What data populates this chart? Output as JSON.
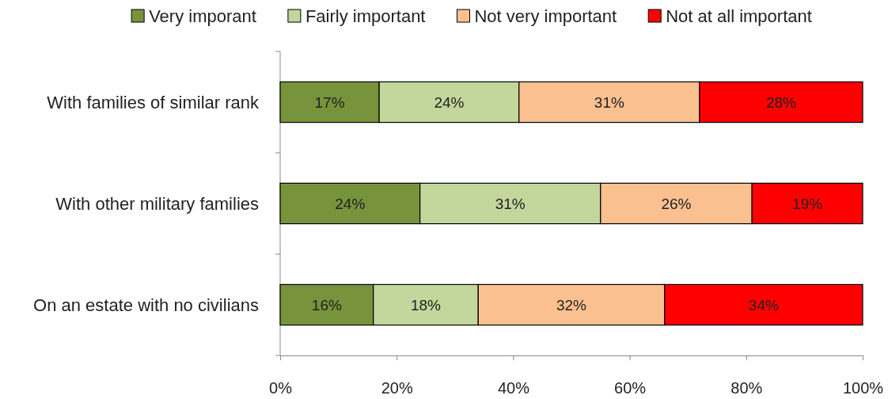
{
  "chart_data": {
    "type": "bar",
    "orientation": "horizontal",
    "stacked": true,
    "categories": [
      "With families of similar rank",
      "With other military families",
      "On an estate with no civilians"
    ],
    "series": [
      {
        "name": "Very imporant",
        "color": "#77933c",
        "values": [
          17,
          24,
          16
        ],
        "value_labels": [
          "17%",
          "24%",
          "16%"
        ]
      },
      {
        "name": "Fairly important",
        "color": "#c3d69b",
        "values": [
          24,
          31,
          18
        ],
        "value_labels": [
          "24%",
          "31%",
          "18%"
        ]
      },
      {
        "name": "Not very important",
        "color": "#fac090",
        "values": [
          31,
          26,
          32
        ],
        "value_labels": [
          "31%",
          "26%",
          "32%"
        ]
      },
      {
        "name": "Not at all important",
        "color": "#ff0000",
        "values": [
          28,
          19,
          34
        ],
        "value_labels": [
          "28%",
          "19%",
          "34%"
        ]
      }
    ],
    "xlim": [
      0,
      100
    ],
    "xticks": [
      {
        "value": 0,
        "label": "0%"
      },
      {
        "value": 20,
        "label": "20%"
      },
      {
        "value": 40,
        "label": "40%"
      },
      {
        "value": 60,
        "label": "60%"
      },
      {
        "value": 80,
        "label": "80%"
      },
      {
        "value": 100,
        "label": "100%"
      }
    ],
    "grid": false,
    "legend": "top"
  }
}
